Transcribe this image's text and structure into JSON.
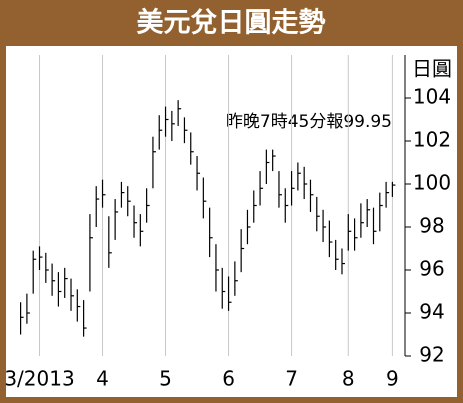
{
  "chart_data": {
    "type": "ohlc",
    "title": "美元兌日圓走勢",
    "y_label": "日圓",
    "annotation": "昨晚7時45分報99.95",
    "color": "#000000",
    "x": [
      0,
      1,
      2,
      3,
      4,
      5,
      6,
      7,
      8,
      9,
      10,
      11,
      12,
      13,
      14,
      15,
      16,
      17,
      18,
      19,
      20,
      21,
      22,
      23,
      24,
      25,
      26,
      27,
      28,
      29,
      30,
      31,
      32,
      33,
      34,
      35,
      36,
      37,
      38,
      39,
      40,
      41,
      42,
      43,
      44,
      45,
      46,
      47,
      48,
      49,
      50,
      51,
      52,
      53,
      54,
      55,
      56,
      57,
      58,
      59
    ],
    "high": [
      94.5,
      94.9,
      96.9,
      97.1,
      96.8,
      96.3,
      95.9,
      96.1,
      95.6,
      95.1,
      94.6,
      98.6,
      99.9,
      100.2,
      98.5,
      99.3,
      100.1,
      99.9,
      99.0,
      98.6,
      99.8,
      102.2,
      103.2,
      103.6,
      103.4,
      103.9,
      103.1,
      102.4,
      101.3,
      100.3,
      98.9,
      97.2,
      96.1,
      95.7,
      96.4,
      97.9,
      98.8,
      99.7,
      100.6,
      101.6,
      101.6,
      100.6,
      99.8,
      100.6,
      101.0,
      100.8,
      100.2,
      99.4,
      98.8,
      98.3,
      97.4,
      97.0,
      98.6,
      98.4,
      99.1,
      99.3,
      98.9,
      99.6,
      100.1,
      100.1
    ],
    "low": [
      93.0,
      93.5,
      94.9,
      96.0,
      95.4,
      94.8,
      94.3,
      94.7,
      94.1,
      93.6,
      92.9,
      95.0,
      98.0,
      98.9,
      96.1,
      97.4,
      98.9,
      98.5,
      97.5,
      97.1,
      98.2,
      99.8,
      101.6,
      102.2,
      102.0,
      102.7,
      101.9,
      100.9,
      99.7,
      98.4,
      96.6,
      95.0,
      94.2,
      94.1,
      94.8,
      95.9,
      97.2,
      98.2,
      99.0,
      100.0,
      100.6,
      98.9,
      98.2,
      99.0,
      99.7,
      99.3,
      98.7,
      97.8,
      97.3,
      96.6,
      96.0,
      95.8,
      96.9,
      96.9,
      97.5,
      98.0,
      97.2,
      97.8,
      98.9,
      99.4
    ],
    "close": [
      93.8,
      94.0,
      96.5,
      96.6,
      96.0,
      95.5,
      95.0,
      95.6,
      94.8,
      94.3,
      93.3,
      97.5,
      99.3,
      99.5,
      96.8,
      98.7,
      99.6,
      99.2,
      98.2,
      97.8,
      99.0,
      101.5,
      102.5,
      103.0,
      102.8,
      103.5,
      102.5,
      101.5,
      100.5,
      99.2,
      97.5,
      96.0,
      95.0,
      94.5,
      95.5,
      97.0,
      98.0,
      99.0,
      99.8,
      101.0,
      101.3,
      99.5,
      99.0,
      99.8,
      100.5,
      100.0,
      99.5,
      98.5,
      98.0,
      97.3,
      96.5,
      96.3,
      97.8,
      97.5,
      98.2,
      98.8,
      97.8,
      99.0,
      99.6,
      99.95
    ],
    "xlim": [
      -2,
      61
    ],
    "xticks": [
      {
        "value": 3,
        "label": "3/2013"
      },
      {
        "value": 13,
        "label": "4"
      },
      {
        "value": 23,
        "label": "5"
      },
      {
        "value": 33,
        "label": "6"
      },
      {
        "value": 43,
        "label": "7"
      },
      {
        "value": 52,
        "label": "8"
      },
      {
        "value": 59,
        "label": "9"
      }
    ],
    "ylim": [
      92,
      106
    ],
    "yticks": [
      92,
      94,
      96,
      98,
      100,
      102,
      104
    ],
    "grid": true
  }
}
